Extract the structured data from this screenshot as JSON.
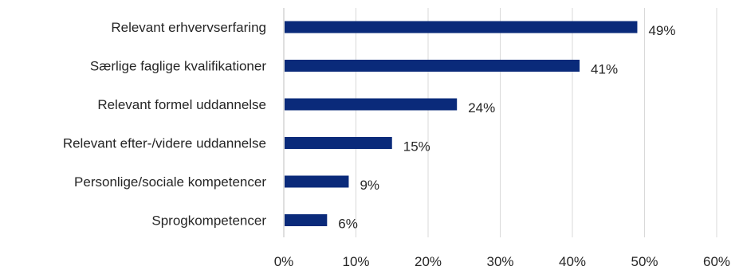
{
  "chart_data": {
    "type": "bar",
    "orientation": "horizontal",
    "title": "",
    "xlabel": "",
    "ylabel": "",
    "categories": [
      "Relevant erhvervserfaring",
      "Særlige faglige kvalifikationer",
      "Relevant formel uddannelse",
      "Relevant efter-/videre uddannelse",
      "Personlige/sociale kompetencer",
      "Sprogkompetencer"
    ],
    "values": [
      49,
      41,
      24,
      15,
      9,
      6
    ],
    "value_labels": [
      "49%",
      "41%",
      "24%",
      "15%",
      "9%",
      "6%"
    ],
    "xlim": [
      0,
      60
    ],
    "x_ticks": [
      0,
      10,
      20,
      30,
      40,
      50,
      60
    ],
    "x_tick_labels": [
      "0%",
      "10%",
      "20%",
      "30%",
      "40%",
      "50%",
      "60%"
    ],
    "grid": "vertical",
    "legend": "none",
    "bar_color": "#0a2a7a"
  }
}
